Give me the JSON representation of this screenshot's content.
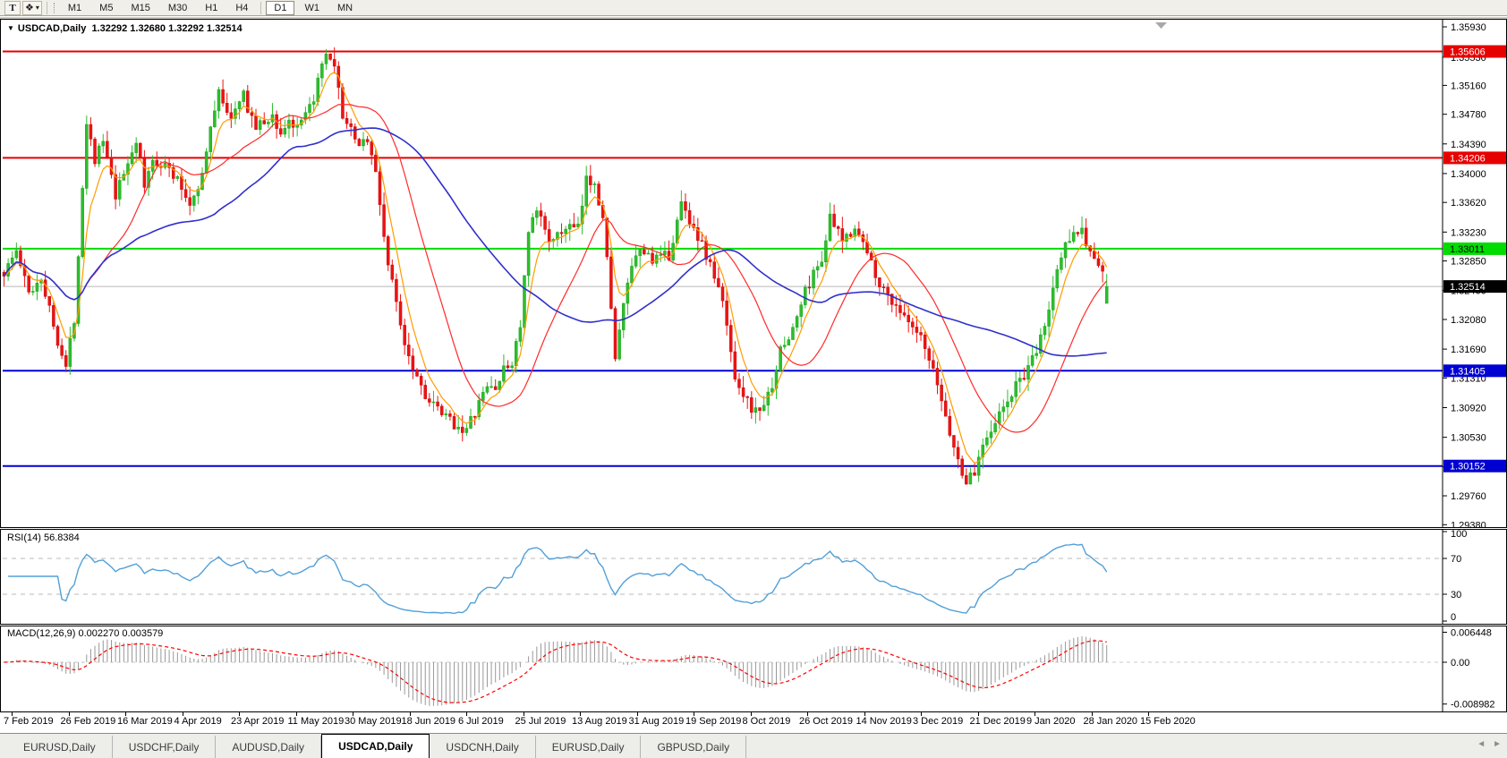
{
  "toolbar": {
    "text_tool_label": "T",
    "objects_tool_glyph": "❖",
    "dropdown_caret": "▾",
    "timeframes": [
      "M1",
      "M5",
      "M15",
      "M30",
      "H1",
      "H4",
      "D1",
      "W1",
      "MN"
    ],
    "active_timeframe": "D1"
  },
  "header": {
    "collapse_glyph": "▼",
    "title": "USDCAD,Daily",
    "quote": "1.32292 1.32680 1.32292 1.32514"
  },
  "rsi": {
    "label": "RSI(14)",
    "value": "56.8384"
  },
  "macd": {
    "label": "MACD(12,26,9)",
    "values": "0.002270 0.003579"
  },
  "tabs": {
    "items": [
      "EURUSD,Daily",
      "USDCHF,Daily",
      "AUDUSD,Daily",
      "USDCAD,Daily",
      "USDCNH,Daily",
      "EURUSD,Daily",
      "GBPUSD,Daily"
    ],
    "active_index": 3,
    "scroll_left_glyph": "◄",
    "scroll_right_glyph": "►"
  },
  "chart_data": [
    {
      "type": "candlestick",
      "title": "USDCAD,Daily",
      "last_quote": {
        "open": 1.32292,
        "high": 1.3268,
        "low": 1.32292,
        "close": 1.32514
      },
      "ylim": [
        1.2938,
        1.3593
      ],
      "y_ticks": [
        "1.35930",
        "1.35530",
        "1.35160",
        "1.34780",
        "1.34390",
        "1.34000",
        "1.33620",
        "1.33230",
        "1.32850",
        "1.32460",
        "1.32080",
        "1.31690",
        "1.31310",
        "1.30920",
        "1.30530",
        "1.30140",
        "1.29760",
        "1.29380"
      ],
      "x_tick_dates": [
        "7 Feb 2019",
        "26 Feb 2019",
        "16 Mar 2019",
        "4 Apr 2019",
        "23 Apr 2019",
        "11 May 2019",
        "30 May 2019",
        "18 Jun 2019",
        "6 Jul 2019",
        "25 Jul 2019",
        "13 Aug 2019",
        "31 Aug 2019",
        "19 Sep 2019",
        "8 Oct 2019",
        "26 Oct 2019",
        "14 Nov 2019",
        "3 Dec 2019",
        "21 Dec 2019",
        "9 Jan 2020",
        "28 Jan 2020",
        "15 Feb 2020"
      ],
      "horizontal_levels": [
        {
          "price": 1.35606,
          "label": "1.35606",
          "color": "#e60000",
          "badge_text_color": "#ffffff"
        },
        {
          "price": 1.34206,
          "label": "1.34206",
          "color": "#e60000",
          "badge_text_color": "#ffffff"
        },
        {
          "price": 1.33011,
          "label": "1.33011",
          "color": "#00dc00",
          "badge_text_color": "#000000"
        },
        {
          "price": 1.31405,
          "label": "1.31405",
          "color": "#0000d2",
          "badge_text_color": "#ffffff"
        },
        {
          "price": 1.30152,
          "label": "1.30152",
          "color": "#0000d2",
          "badge_text_color": "#ffffff"
        }
      ],
      "current_price": {
        "price": 1.32514,
        "label": "1.32514",
        "line_color": "#b6b6b6",
        "badge_color": "#000000",
        "badge_text_color": "#ffffff"
      },
      "bars": 268,
      "candle_up_color": "#2dbe2d",
      "candle_up_stroke": "#1da11d",
      "candle_down_color": "#ef1212",
      "candle_down_stroke": "#c30d0d",
      "shift_marker_color": "#a8a8a8",
      "series_overlays": [
        {
          "name": "ma-fast",
          "type": "ema",
          "period": 6,
          "color": "#ff9c00"
        },
        {
          "name": "ma-mid",
          "type": "sma",
          "period": 20,
          "color": "#ff2a2a"
        },
        {
          "name": "ma-slow",
          "type": "sma",
          "period": 52,
          "color": "#3030cc"
        }
      ],
      "price_path_waypoints": [
        [
          0,
          1.327
        ],
        [
          3,
          1.3298
        ],
        [
          6,
          1.3242
        ],
        [
          9,
          1.3265
        ],
        [
          12,
          1.32
        ],
        [
          15,
          1.3145
        ],
        [
          17,
          1.321
        ],
        [
          20,
          1.347
        ],
        [
          22,
          1.342
        ],
        [
          24,
          1.3442
        ],
        [
          27,
          1.3368
        ],
        [
          30,
          1.3415
        ],
        [
          32,
          1.3445
        ],
        [
          34,
          1.3382
        ],
        [
          36,
          1.3418
        ],
        [
          39,
          1.3412
        ],
        [
          42,
          1.339
        ],
        [
          45,
          1.336
        ],
        [
          48,
          1.3398
        ],
        [
          52,
          1.3515
        ],
        [
          54,
          1.3475
        ],
        [
          56,
          1.3482
        ],
        [
          58,
          1.3502
        ],
        [
          61,
          1.346
        ],
        [
          65,
          1.3475
        ],
        [
          67,
          1.3452
        ],
        [
          69,
          1.347
        ],
        [
          71,
          1.3456
        ],
        [
          74,
          1.3484
        ],
        [
          78,
          1.3555
        ],
        [
          80,
          1.3535
        ],
        [
          82,
          1.3478
        ],
        [
          85,
          1.3442
        ],
        [
          88,
          1.3445
        ],
        [
          90,
          1.34
        ],
        [
          93,
          1.328
        ],
        [
          95,
          1.323
        ],
        [
          97,
          1.318
        ],
        [
          99,
          1.3148
        ],
        [
          101,
          1.3122
        ],
        [
          103,
          1.31
        ],
        [
          106,
          1.3082
        ],
        [
          108,
          1.3075
        ],
        [
          110,
          1.3068
        ],
        [
          112,
          1.3062
        ],
        [
          114,
          1.3085
        ],
        [
          117,
          1.312
        ],
        [
          119,
          1.3118
        ],
        [
          121,
          1.314
        ],
        [
          123,
          1.3152
        ],
        [
          125,
          1.32
        ],
        [
          127,
          1.332
        ],
        [
          129,
          1.335
        ],
        [
          133,
          1.3308
        ],
        [
          136,
          1.333
        ],
        [
          139,
          1.3326
        ],
        [
          141,
          1.339
        ],
        [
          143,
          1.3392
        ],
        [
          145,
          1.334
        ],
        [
          147,
          1.323
        ],
        [
          148,
          1.3155
        ],
        [
          151,
          1.3258
        ],
        [
          154,
          1.3298
        ],
        [
          158,
          1.3286
        ],
        [
          161,
          1.3292
        ],
        [
          164,
          1.336
        ],
        [
          167,
          1.333
        ],
        [
          171,
          1.328
        ],
        [
          174,
          1.323
        ],
        [
          177,
          1.3135
        ],
        [
          180,
          1.31
        ],
        [
          182,
          1.3085
        ],
        [
          185,
          1.3105
        ],
        [
          188,
          1.3165
        ],
        [
          191,
          1.3195
        ],
        [
          194,
          1.3245
        ],
        [
          198,
          1.329
        ],
        [
          200,
          1.334
        ],
        [
          203,
          1.331
        ],
        [
          206,
          1.3332
        ],
        [
          209,
          1.3295
        ],
        [
          213,
          1.3245
        ],
        [
          216,
          1.3228
        ],
        [
          219,
          1.32
        ],
        [
          222,
          1.3181
        ],
        [
          226,
          1.3122
        ],
        [
          229,
          1.306
        ],
        [
          231,
          1.302
        ],
        [
          233,
          1.2996
        ],
        [
          235,
          1.3005
        ],
        [
          237,
          1.3048
        ],
        [
          240,
          1.3075
        ],
        [
          242,
          1.309
        ],
        [
          244,
          1.311
        ],
        [
          246,
          1.313
        ],
        [
          248,
          1.314
        ],
        [
          250,
          1.3165
        ],
        [
          253,
          1.322
        ],
        [
          255,
          1.3275
        ],
        [
          257,
          1.3305
        ],
        [
          259,
          1.333
        ],
        [
          261,
          1.3322
        ],
        [
          263,
          1.3298
        ],
        [
          265,
          1.3278
        ],
        [
          267,
          1.32514
        ]
      ]
    },
    {
      "type": "line",
      "name": "RSI",
      "label": "RSI(14)",
      "last_value": 56.8384,
      "period": 14,
      "ylim": [
        0,
        100
      ],
      "y_ticks": [
        "100",
        "70",
        "30",
        "0"
      ],
      "guide_levels": [
        70,
        30
      ],
      "line_color": "#52a0d8",
      "guide_color": "#b8b8b8"
    },
    {
      "type": "macd",
      "label": "MACD(12,26,9)",
      "params": [
        12,
        26,
        9
      ],
      "main_value": 0.00227,
      "signal_value": 0.003579,
      "y_ticks": [
        "0.006448",
        "0.00",
        "-0.008982"
      ],
      "histogram_color": "#989898",
      "signal_color": "#ff0000",
      "zero_line_color": "#c8c8c8"
    }
  ]
}
